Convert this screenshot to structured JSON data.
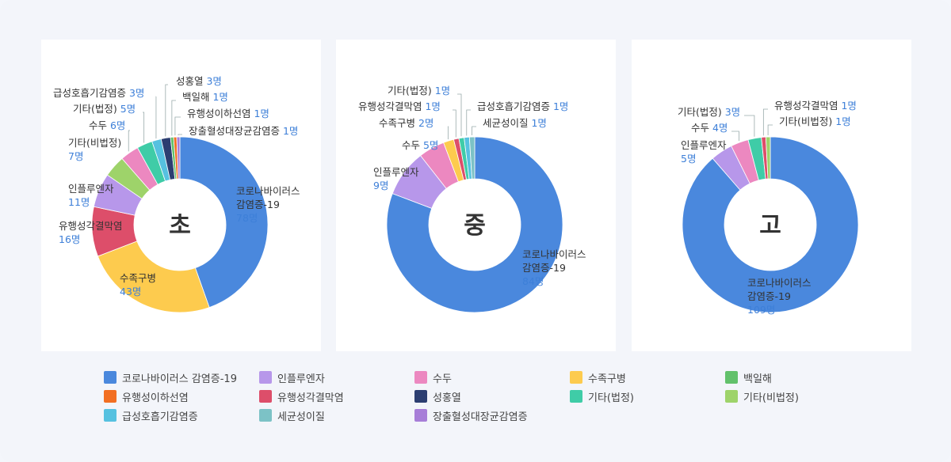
{
  "categories": [
    {
      "name": "코로나바이러스 감염증-19",
      "color": "#4a88dd"
    },
    {
      "name": "인플루엔자",
      "color": "#b797ea"
    },
    {
      "name": "수두",
      "color": "#ec88c0"
    },
    {
      "name": "수족구병",
      "color": "#fdcb4e"
    },
    {
      "name": "백일해",
      "color": "#62c16b"
    },
    {
      "name": "유행성이하선염",
      "color": "#f26f22"
    },
    {
      "name": "유행성각결막염",
      "color": "#dd4e6a"
    },
    {
      "name": "성홍열",
      "color": "#2c3e71"
    },
    {
      "name": "기타(법정)",
      "color": "#3fcca7"
    },
    {
      "name": "기타(비법정)",
      "color": "#9ed36a"
    },
    {
      "name": "급성호흡기감염증",
      "color": "#56c1e0"
    },
    {
      "name": "세균성이질",
      "color": "#7cc2c6"
    },
    {
      "name": "장출혈성대장균감염증",
      "color": "#a77ed8"
    }
  ],
  "chart_data": [
    {
      "type": "pie",
      "center_label": "초",
      "unit": "명",
      "slices": [
        {
          "category": "코로나바이러스 감염증-19",
          "label": "코로나바이러스\n감염증-19",
          "value": 78
        },
        {
          "category": "수족구병",
          "label": "수족구병",
          "value": 43
        },
        {
          "category": "유행성각결막염",
          "label": "유행성각결막염",
          "value": 16
        },
        {
          "category": "인플루엔자",
          "label": "인플루엔자",
          "value": 11
        },
        {
          "category": "기타(비법정)",
          "label": "기타(비법정)",
          "value": 7
        },
        {
          "category": "수두",
          "label": "수두",
          "value": 6
        },
        {
          "category": "기타(법정)",
          "label": "기타(법정)",
          "value": 5
        },
        {
          "category": "급성호흡기감염증",
          "label": "급성호흡기감염증",
          "value": 3
        },
        {
          "category": "성홍열",
          "label": "성홍열",
          "value": 3
        },
        {
          "category": "백일해",
          "label": "백일해",
          "value": 1
        },
        {
          "category": "유행성이하선염",
          "label": "유행성이하선염",
          "value": 1
        },
        {
          "category": "장출혈성대장균감염증",
          "label": "장출혈성대장균감염증",
          "value": 1
        }
      ]
    },
    {
      "type": "pie",
      "center_label": "중",
      "unit": "명",
      "slices": [
        {
          "category": "코로나바이러스 감염증-19",
          "label": "코로나바이러스\n감염증-19",
          "value": 84
        },
        {
          "category": "인플루엔자",
          "label": "인플루엔자",
          "value": 9
        },
        {
          "category": "수두",
          "label": "수두",
          "value": 5
        },
        {
          "category": "수족구병",
          "label": "수족구병",
          "value": 2
        },
        {
          "category": "유행성각결막염",
          "label": "유행성각결막염",
          "value": 1
        },
        {
          "category": "기타(법정)",
          "label": "기타(법정)",
          "value": 1
        },
        {
          "category": "급성호흡기감염증",
          "label": "급성호흡기감염증",
          "value": 1
        },
        {
          "category": "세균성이질",
          "label": "세균성이질",
          "value": 1
        }
      ]
    },
    {
      "type": "pie",
      "center_label": "고",
      "unit": "명",
      "slices": [
        {
          "category": "코로나바이러스 감염증-19",
          "label": "코로나바이러스\n감염증-19",
          "value": 109
        },
        {
          "category": "인플루엔자",
          "label": "인플루엔자",
          "value": 5
        },
        {
          "category": "수두",
          "label": "수두",
          "value": 4
        },
        {
          "category": "기타(법정)",
          "label": "기타(법정)",
          "value": 3
        },
        {
          "category": "유행성각결막염",
          "label": "유행성각결막염",
          "value": 1
        },
        {
          "category": "기타(비법정)",
          "label": "기타(비법정)",
          "value": 1
        }
      ]
    }
  ]
}
